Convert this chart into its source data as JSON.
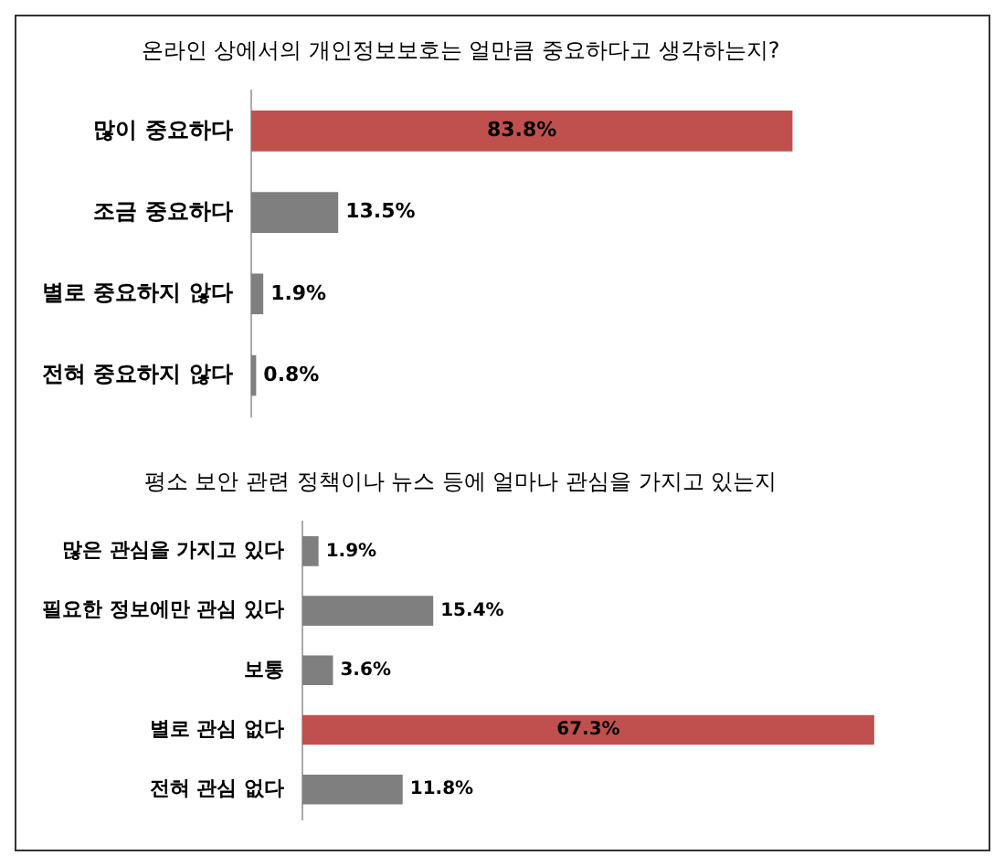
{
  "chart_data": [
    {
      "type": "bar",
      "orientation": "horizontal",
      "title": "온라인 상에서의 개인정보보호는 얼만큼 중요하다고 생각하는지?",
      "categories": [
        "많이 중요하다",
        "조금 중요하다",
        "별로 중요하지 않다",
        "전혀 중요하지 않다"
      ],
      "values": [
        83.8,
        13.5,
        1.9,
        0.8
      ],
      "colors": [
        "#c0504d",
        "#7f7f7f",
        "#7f7f7f",
        "#7f7f7f"
      ],
      "value_labels": [
        "83.8%",
        "13.5%",
        "1.9%",
        "0.8%"
      ],
      "legend": false
    },
    {
      "type": "bar",
      "orientation": "horizontal",
      "title": "평소 보안 관련 정책이나 뉴스 등에 얼마나 관심을 가지고 있는지",
      "categories": [
        "많은 관심을 가지고 있다",
        "필요한 정보에만 관심 있다",
        "보통",
        "별로 관심 없다",
        "전혀 관심 없다"
      ],
      "values": [
        1.9,
        15.4,
        3.6,
        67.3,
        11.8
      ],
      "colors": [
        "#7f7f7f",
        "#7f7f7f",
        "#7f7f7f",
        "#c0504d",
        "#7f7f7f"
      ],
      "value_labels": [
        "1.9%",
        "15.4%",
        "3.6%",
        "67.3%",
        "11.8%"
      ],
      "legend": false
    }
  ]
}
